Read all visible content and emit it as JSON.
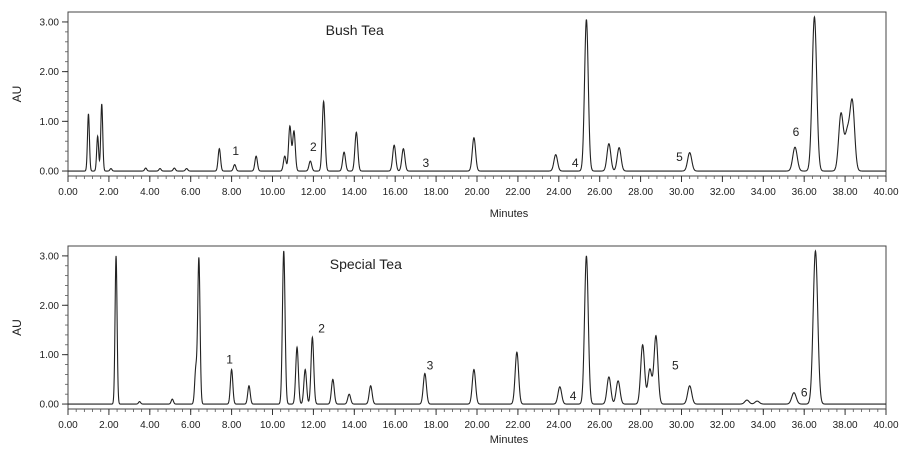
{
  "chart_data": [
    {
      "type": "line",
      "title": "Bush Tea",
      "xlabel": "Minutes",
      "ylabel": "AU",
      "xlim": [
        0,
        40
      ],
      "ylim": [
        -0.1,
        3.2
      ],
      "x_ticks": [
        "0.00",
        "2.00",
        "4.00",
        "6.00",
        "8.00",
        "10.00",
        "12.00",
        "14.00",
        "16.00",
        "18.00",
        "20.00",
        "22.00",
        "24.00",
        "26.00",
        "28.00",
        "30.00",
        "32.00",
        "34.00",
        "36.00",
        "38.00",
        "40.00"
      ],
      "y_ticks": [
        "0.00",
        "1.00",
        "2.00",
        "3.00"
      ],
      "peaks": [
        {
          "rt": 1.0,
          "h": 1.15
        },
        {
          "rt": 1.45,
          "h": 0.7
        },
        {
          "rt": 1.65,
          "h": 1.35
        },
        {
          "rt": 2.1,
          "h": 0.05
        },
        {
          "rt": 3.8,
          "h": 0.06
        },
        {
          "rt": 4.5,
          "h": 0.05
        },
        {
          "rt": 5.2,
          "h": 0.06
        },
        {
          "rt": 5.8,
          "h": 0.05
        },
        {
          "rt": 7.4,
          "h": 0.45
        },
        {
          "rt": 8.15,
          "h": 0.13
        },
        {
          "rt": 9.2,
          "h": 0.3
        },
        {
          "rt": 10.6,
          "h": 0.3
        },
        {
          "rt": 10.85,
          "h": 0.9
        },
        {
          "rt": 11.05,
          "h": 0.8
        },
        {
          "rt": 11.85,
          "h": 0.2
        },
        {
          "rt": 12.5,
          "h": 1.4
        },
        {
          "rt": 13.5,
          "h": 0.38
        },
        {
          "rt": 14.1,
          "h": 0.78
        },
        {
          "rt": 15.95,
          "h": 0.52
        },
        {
          "rt": 16.4,
          "h": 0.45
        },
        {
          "rt": 19.85,
          "h": 0.67
        },
        {
          "rt": 23.85,
          "h": 0.33
        },
        {
          "rt": 25.35,
          "h": 3.05
        },
        {
          "rt": 26.45,
          "h": 0.55
        },
        {
          "rt": 26.95,
          "h": 0.47
        },
        {
          "rt": 30.4,
          "h": 0.37
        },
        {
          "rt": 35.55,
          "h": 0.48
        },
        {
          "rt": 36.5,
          "h": 3.1
        },
        {
          "rt": 37.8,
          "h": 1.15
        },
        {
          "rt": 38.1,
          "h": 0.72
        },
        {
          "rt": 38.35,
          "h": 1.38
        }
      ],
      "annotations": [
        {
          "label": "1",
          "x": 8.2,
          "y": 0.32
        },
        {
          "label": "2",
          "x": 12.0,
          "y": 0.4
        },
        {
          "label": "3",
          "x": 17.5,
          "y": 0.08
        },
        {
          "label": "4",
          "x": 24.8,
          "y": 0.08
        },
        {
          "label": "5",
          "x": 29.9,
          "y": 0.2
        },
        {
          "label": "6",
          "x": 35.6,
          "y": 0.7
        }
      ]
    },
    {
      "type": "line",
      "title": "Special Tea",
      "xlabel": "Minutes",
      "ylabel": "AU",
      "xlim": [
        0,
        40
      ],
      "ylim": [
        -0.1,
        3.2
      ],
      "x_ticks": [
        "0.00",
        "2.00",
        "4.00",
        "6.00",
        "8.00",
        "10.00",
        "12.00",
        "14.00",
        "16.00",
        "18.00",
        "20.00",
        "22.00",
        "24.00",
        "26.00",
        "28.00",
        "30.00",
        "32.00",
        "34.00",
        "36.00",
        "38.00",
        "40.00"
      ],
      "y_ticks": [
        "0.00",
        "1.00",
        "2.00",
        "3.00"
      ],
      "peaks": [
        {
          "rt": 2.35,
          "h": 3.0
        },
        {
          "rt": 3.5,
          "h": 0.05
        },
        {
          "rt": 5.1,
          "h": 0.1
        },
        {
          "rt": 6.25,
          "h": 0.7
        },
        {
          "rt": 6.4,
          "h": 2.95
        },
        {
          "rt": 8.0,
          "h": 0.7
        },
        {
          "rt": 8.85,
          "h": 0.37
        },
        {
          "rt": 10.55,
          "h": 3.1
        },
        {
          "rt": 11.2,
          "h": 1.15
        },
        {
          "rt": 11.6,
          "h": 0.7
        },
        {
          "rt": 11.95,
          "h": 1.35
        },
        {
          "rt": 12.95,
          "h": 0.5
        },
        {
          "rt": 13.75,
          "h": 0.2
        },
        {
          "rt": 14.8,
          "h": 0.37
        },
        {
          "rt": 17.45,
          "h": 0.62
        },
        {
          "rt": 19.85,
          "h": 0.7
        },
        {
          "rt": 21.95,
          "h": 1.05
        },
        {
          "rt": 24.05,
          "h": 0.35
        },
        {
          "rt": 25.35,
          "h": 3.0
        },
        {
          "rt": 26.45,
          "h": 0.55
        },
        {
          "rt": 26.9,
          "h": 0.47
        },
        {
          "rt": 28.1,
          "h": 1.2
        },
        {
          "rt": 28.45,
          "h": 0.7
        },
        {
          "rt": 28.75,
          "h": 1.38
        },
        {
          "rt": 30.4,
          "h": 0.37
        },
        {
          "rt": 33.2,
          "h": 0.08
        },
        {
          "rt": 33.7,
          "h": 0.06
        },
        {
          "rt": 35.5,
          "h": 0.23
        },
        {
          "rt": 36.55,
          "h": 3.1
        }
      ],
      "annotations": [
        {
          "label": "1",
          "x": 7.9,
          "y": 0.82
        },
        {
          "label": "2",
          "x": 12.4,
          "y": 1.45
        },
        {
          "label": "3",
          "x": 17.7,
          "y": 0.7
        },
        {
          "label": "4",
          "x": 24.7,
          "y": 0.08
        },
        {
          "label": "5",
          "x": 29.7,
          "y": 0.7
        },
        {
          "label": "6",
          "x": 36.0,
          "y": 0.15
        }
      ]
    }
  ]
}
